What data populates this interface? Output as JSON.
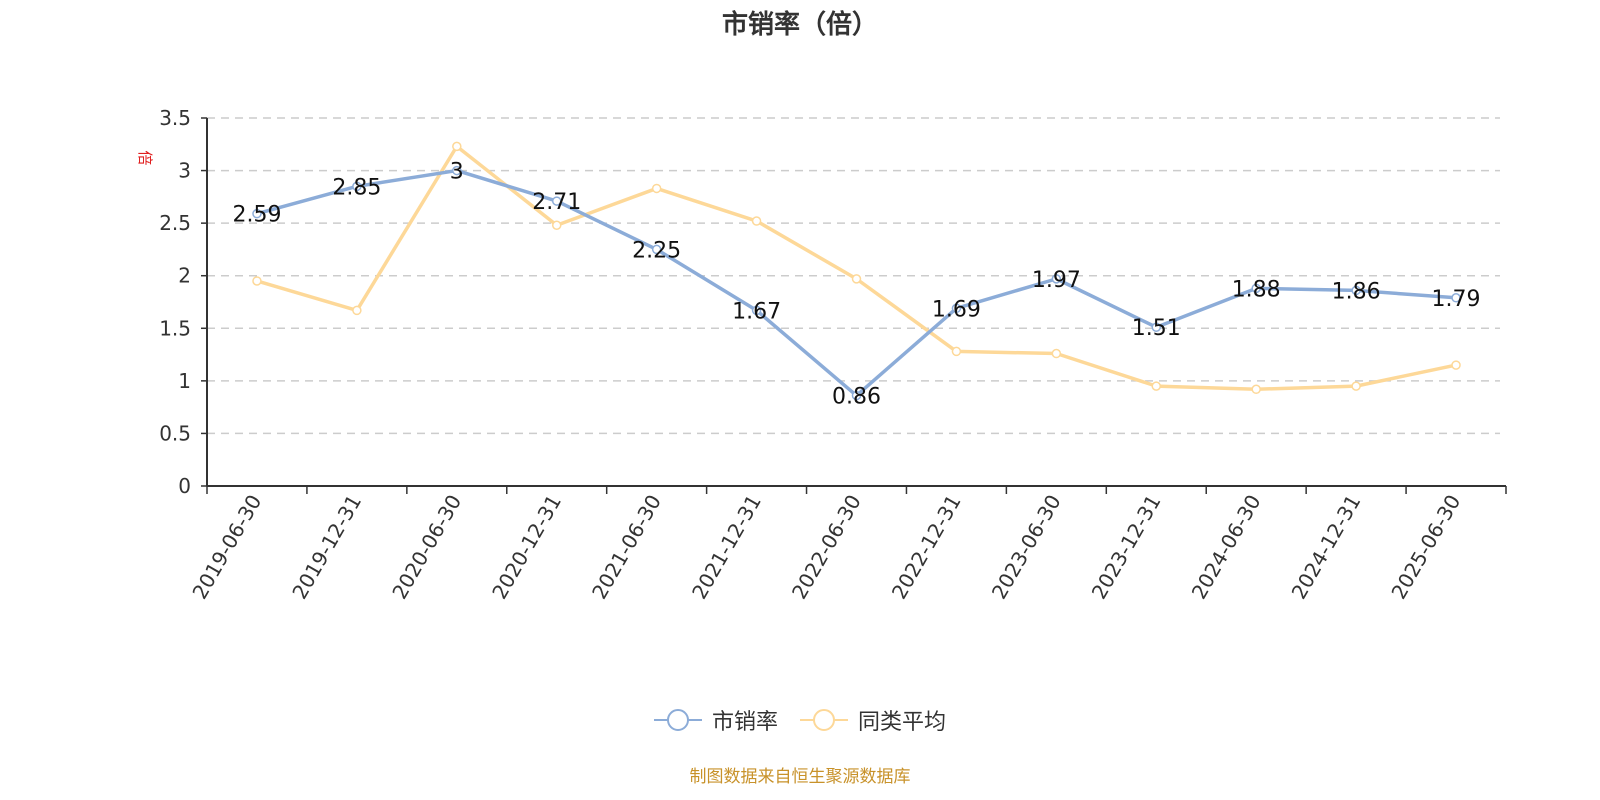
{
  "title": "市销率（倍）",
  "source_note": "制图数据来自恒生聚源数据库",
  "colors": {
    "series1": "#8cacd8",
    "series2": "#fdd898",
    "axis": "#333333",
    "grid": "#cccccc",
    "ylabel": "#e02020",
    "source": "#c8922a"
  },
  "legend": [
    {
      "label": "市销率",
      "color": "#8cacd8"
    },
    {
      "label": "同类平均",
      "color": "#fdd898"
    }
  ],
  "chart_data": {
    "type": "line",
    "title": "市销率（倍）",
    "xlabel": "",
    "ylabel": "倍",
    "ylim": [
      0,
      3.5
    ],
    "yticks": [
      0,
      0.5,
      1,
      1.5,
      2,
      2.5,
      3,
      3.5
    ],
    "grid": true,
    "legend_position": "bottom",
    "categories": [
      "2019-06-30",
      "2019-12-31",
      "2020-06-30",
      "2020-12-31",
      "2021-06-30",
      "2021-12-31",
      "2022-06-30",
      "2022-12-31",
      "2023-06-30",
      "2023-12-31",
      "2024-06-30",
      "2024-12-31",
      "2025-06-30"
    ],
    "series": [
      {
        "name": "市销率",
        "values": [
          2.59,
          2.85,
          3,
          2.71,
          2.25,
          1.67,
          0.86,
          1.69,
          1.97,
          1.51,
          1.88,
          1.86,
          1.79
        ],
        "labels": [
          "2.59",
          "2.85",
          "3",
          "2.71",
          "2.25",
          "1.67",
          "0.86",
          "1.69",
          "1.97",
          "1.51",
          "1.88",
          "1.86",
          "1.79"
        ]
      },
      {
        "name": "同类平均",
        "values": [
          1.95,
          1.67,
          3.23,
          2.48,
          2.83,
          2.52,
          1.97,
          1.28,
          1.26,
          0.95,
          0.92,
          0.95,
          1.15
        ]
      }
    ]
  }
}
